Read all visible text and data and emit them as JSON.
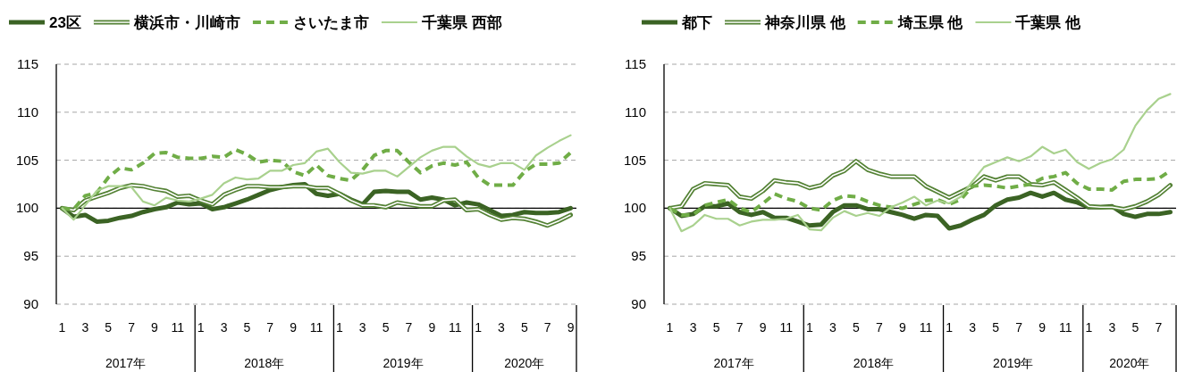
{
  "chart_data": [
    {
      "type": "line",
      "categories": [
        "1",
        null,
        "3",
        null,
        "5",
        null,
        "7",
        null,
        "9",
        null,
        "11",
        null,
        "1",
        null,
        "3",
        null,
        "5",
        null,
        "7",
        null,
        "9",
        null,
        "11",
        null,
        "1",
        null,
        "3",
        null,
        "5",
        null,
        "7",
        null,
        "9",
        null,
        "11",
        null,
        "1",
        null,
        "3",
        null,
        "5",
        null,
        "7",
        null,
        "9"
      ],
      "ylim": [
        90,
        115
      ],
      "yticks": [
        90,
        95,
        100,
        105,
        110,
        115
      ],
      "grid": "y",
      "legend": "top",
      "ref_lines": [
        {
          "axis": "y",
          "value": 100,
          "color": "#000000"
        }
      ],
      "annotations": [
        "2017年",
        "2018年",
        "2019年",
        "2020年"
      ],
      "series": [
        {
          "name": "23区",
          "color": "#3b6324",
          "values": [
            100,
            99.1,
            99.3,
            98.6,
            98.7,
            99.0,
            99.2,
            99.6,
            99.9,
            100.1,
            100.6,
            100.4,
            100.5,
            99.9,
            100.1,
            100.5,
            100.9,
            101.4,
            101.9,
            102.2,
            102.4,
            102.5,
            101.5,
            101.3,
            101.5,
            100.9,
            100.4,
            101.7,
            101.8,
            101.7,
            101.7,
            100.9,
            101.1,
            100.9,
            100.3,
            100.6,
            100.4,
            99.8,
            99.2,
            99.3,
            99.6,
            99.5,
            99.5,
            99.6,
            100.0
          ]
        },
        {
          "name": "横浜市・川崎市",
          "color": "#548235",
          "values": [
            100,
            99.8,
            100.8,
            101.2,
            101.6,
            102.1,
            102.4,
            102.3,
            102.0,
            101.8,
            101.2,
            101.3,
            100.8,
            100.4,
            101.4,
            101.9,
            102.3,
            102.3,
            102.2,
            102.2,
            102.3,
            102.3,
            102.1,
            102.1,
            101.5,
            100.8,
            100.3,
            100.3,
            100.1,
            100.6,
            100.4,
            100.2,
            100.2,
            100.8,
            100.9,
            99.8,
            99.9,
            99.3,
            98.8,
            99.0,
            98.9,
            98.6,
            98.2,
            98.7,
            99.3
          ]
        },
        {
          "name": "さいたま市",
          "color": "#70ad47",
          "line_style": "dashed",
          "values": [
            100,
            99.9,
            101.3,
            101.6,
            103.2,
            104.2,
            104.0,
            104.7,
            105.7,
            105.8,
            105.3,
            105.2,
            105.2,
            105.4,
            105.3,
            106.1,
            105.6,
            104.8,
            105.0,
            104.9,
            103.8,
            103.4,
            104.5,
            103.4,
            103.1,
            102.9,
            104.0,
            105.5,
            106.0,
            106.0,
            104.8,
            103.7,
            104.4,
            104.7,
            104.5,
            104.8,
            103.2,
            102.4,
            102.4,
            102.4,
            103.8,
            104.6,
            104.6,
            104.7,
            105.8
          ]
        },
        {
          "name": "千葉県 西部",
          "color": "#a9d18e",
          "values": [
            100,
            98.8,
            100.3,
            101.8,
            102.3,
            102.3,
            102.2,
            100.7,
            100.3,
            101.1,
            100.8,
            100.7,
            101.0,
            101.4,
            102.6,
            103.2,
            103.0,
            103.1,
            103.9,
            103.9,
            104.5,
            104.7,
            105.9,
            106.2,
            104.8,
            103.7,
            103.6,
            103.9,
            103.9,
            103.3,
            104.3,
            105.3,
            106.0,
            106.4,
            106.4,
            105.4,
            104.6,
            104.3,
            104.7,
            104.7,
            104.0,
            105.5,
            106.3,
            107.0,
            107.6
          ]
        }
      ]
    },
    {
      "type": "line",
      "categories": [
        "1",
        null,
        "3",
        null,
        "5",
        null,
        "7",
        null,
        "9",
        null,
        "11",
        null,
        "1",
        null,
        "3",
        null,
        "5",
        null,
        "7",
        null,
        "9",
        null,
        "11",
        null,
        "1",
        null,
        "3",
        null,
        "5",
        null,
        "7",
        null,
        "9",
        null,
        "11",
        null,
        "1",
        null,
        "3",
        null,
        "5",
        null,
        "7",
        null
      ],
      "ylim": [
        90,
        115
      ],
      "yticks": [
        90,
        95,
        100,
        105,
        110,
        115
      ],
      "grid": "y",
      "legend": "top",
      "ref_lines": [
        {
          "axis": "y",
          "value": 100,
          "color": "#000000"
        }
      ],
      "annotations": [
        "2017年",
        "2018年",
        "2019年",
        "2020年"
      ],
      "series": [
        {
          "name": "都下",
          "color": "#3b6324",
          "values": [
            100,
            99.2,
            99.4,
            100.2,
            100.2,
            100.5,
            99.6,
            99.3,
            99.6,
            99.0,
            99.0,
            98.6,
            98.2,
            98.3,
            99.6,
            100.3,
            100.3,
            99.9,
            99.9,
            99.6,
            99.3,
            98.9,
            99.3,
            99.2,
            97.9,
            98.2,
            98.8,
            99.3,
            100.3,
            100.9,
            101.1,
            101.6,
            101.2,
            101.6,
            100.9,
            100.6,
            100.1,
            100.1,
            100.2,
            99.4,
            99.1,
            99.4,
            99.4,
            99.6
          ]
        },
        {
          "name": "神奈川県 他",
          "color": "#548235",
          "values": [
            100,
            100.2,
            102.0,
            102.6,
            102.5,
            102.4,
            101.2,
            101.0,
            101.8,
            102.9,
            102.7,
            102.6,
            102.1,
            102.4,
            103.4,
            103.9,
            104.9,
            104.0,
            103.6,
            103.3,
            103.3,
            103.3,
            102.3,
            101.7,
            101.1,
            101.7,
            102.3,
            103.3,
            102.9,
            103.3,
            103.3,
            102.5,
            102.4,
            102.7,
            101.9,
            101.1,
            100.2,
            100.1,
            100.1,
            99.9,
            100.2,
            100.7,
            101.4,
            102.4
          ]
        },
        {
          "name": "埼玉県 他",
          "color": "#70ad47",
          "line_style": "dashed",
          "values": [
            100,
            99.3,
            99.3,
            100.3,
            100.6,
            100.9,
            100.0,
            99.6,
            100.5,
            101.5,
            101.0,
            100.7,
            100.0,
            99.8,
            100.8,
            101.3,
            101.2,
            100.7,
            100.3,
            100.1,
            100.0,
            100.4,
            100.8,
            100.9,
            100.4,
            100.9,
            102.3,
            102.4,
            102.3,
            102.1,
            102.3,
            102.5,
            103.1,
            103.3,
            103.7,
            102.6,
            102.0,
            102.0,
            101.9,
            102.8,
            103.0,
            103.0,
            103.1,
            103.9
          ]
        },
        {
          "name": "千葉県 他",
          "color": "#a9d18e",
          "values": [
            100,
            97.6,
            98.2,
            99.3,
            98.9,
            98.9,
            98.2,
            98.6,
            98.8,
            98.8,
            98.9,
            99.3,
            97.8,
            97.7,
            99.0,
            99.7,
            99.2,
            99.5,
            99.2,
            100.1,
            100.6,
            101.2,
            100.3,
            100.8,
            100.5,
            101.2,
            102.8,
            104.3,
            104.8,
            105.3,
            104.9,
            105.4,
            106.4,
            105.7,
            106.1,
            104.8,
            104.1,
            104.7,
            105.1,
            106.1,
            108.6,
            110.2,
            111.4,
            111.9
          ]
        }
      ]
    }
  ]
}
